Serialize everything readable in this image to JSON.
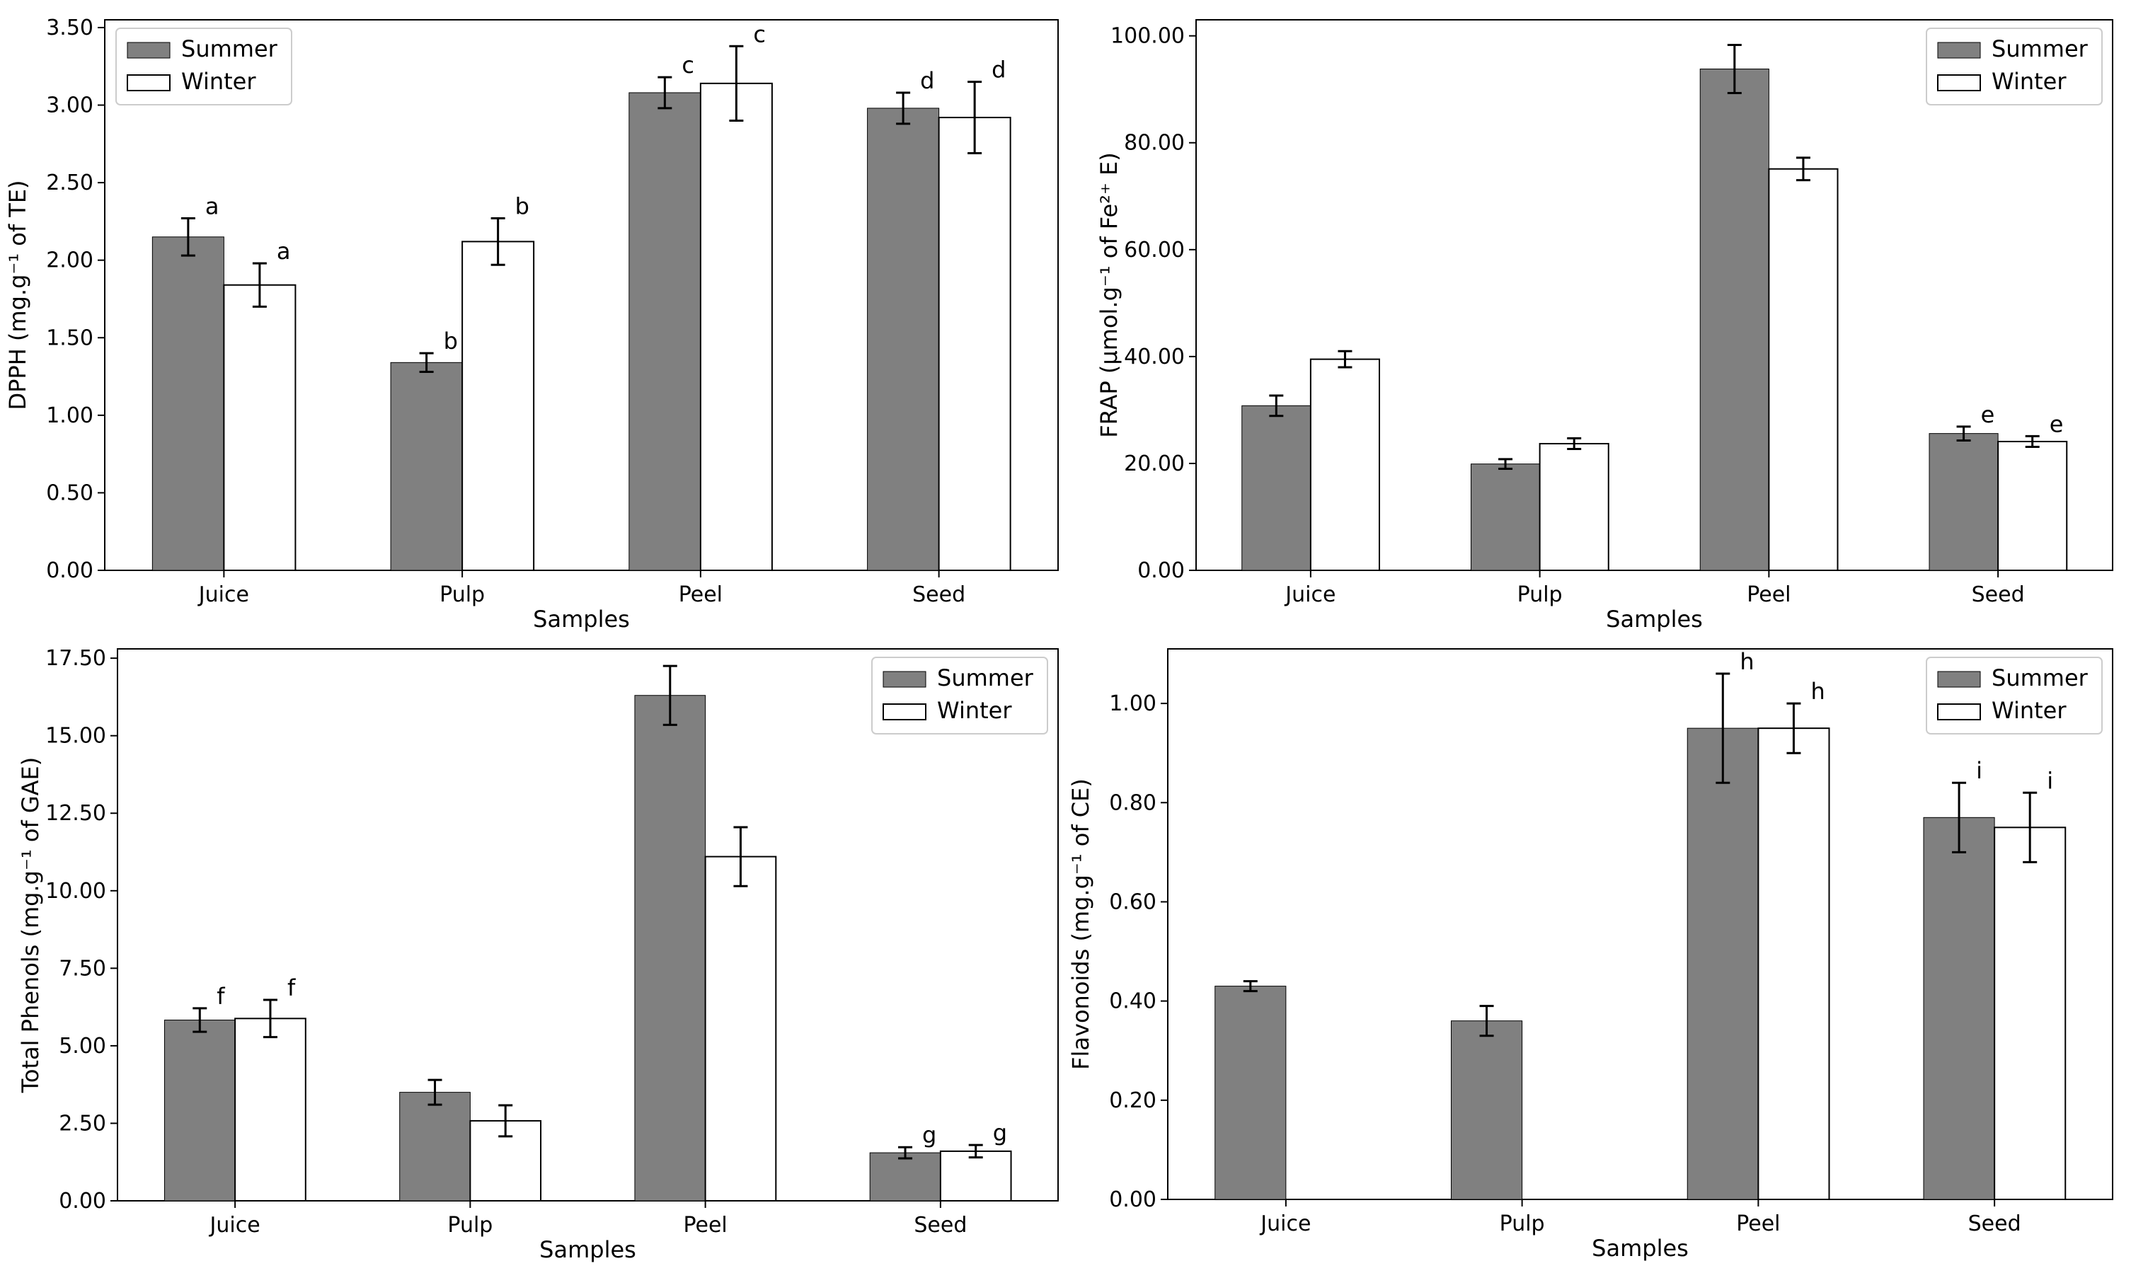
{
  "colors": {
    "summer": "#808080",
    "winter": "#ffffff",
    "edge": "#000000"
  },
  "chart_data": [
    {
      "id": "dpph",
      "type": "bar",
      "title": "",
      "xlabel": "Samples",
      "ylabel": "DPPH (mg.g⁻¹ of TE)",
      "ylim": [
        0,
        3.55
      ],
      "yticks": [
        0,
        0.5,
        1.0,
        1.5,
        2.0,
        2.5,
        3.0,
        3.5
      ],
      "ytick_labels": [
        "0.00",
        "0.50",
        "1.00",
        "1.50",
        "2.00",
        "2.50",
        "3.00",
        "3.50"
      ],
      "categories": [
        "Juice",
        "Pulp",
        "Peel",
        "Seed"
      ],
      "legend": {
        "placement": "top-left",
        "entries": [
          "Summer",
          "Winter"
        ]
      },
      "series": [
        {
          "name": "Summer",
          "values": [
            2.15,
            1.34,
            3.08,
            2.98
          ],
          "errors": [
            0.12,
            0.06,
            0.1,
            0.1
          ],
          "labels": [
            "a",
            "b",
            "c",
            "d"
          ]
        },
        {
          "name": "Winter",
          "values": [
            1.84,
            2.12,
            3.14,
            2.92
          ],
          "errors": [
            0.14,
            0.15,
            0.24,
            0.23
          ],
          "labels": [
            "a",
            "b",
            "c",
            "d"
          ]
        }
      ]
    },
    {
      "id": "frap",
      "type": "bar",
      "title": "",
      "xlabel": "Samples",
      "ylabel": "FRAP (µmol.g⁻¹ of Fe²⁺ E)",
      "ylim": [
        0,
        103
      ],
      "yticks": [
        0,
        20,
        40,
        60,
        80,
        100
      ],
      "ytick_labels": [
        "0.00",
        "20.00",
        "40.00",
        "60.00",
        "80.00",
        "100.00"
      ],
      "categories": [
        "Juice",
        "Pulp",
        "Peel",
        "Seed"
      ],
      "legend": {
        "placement": "top-right",
        "entries": [
          "Summer",
          "Winter"
        ]
      },
      "series": [
        {
          "name": "Summer",
          "values": [
            30.8,
            19.9,
            93.8,
            25.6
          ],
          "errors": [
            1.9,
            0.9,
            4.5,
            1.3
          ],
          "labels": [
            "",
            "",
            "",
            "e"
          ]
        },
        {
          "name": "Winter",
          "values": [
            39.5,
            23.7,
            75.1,
            24.1
          ],
          "errors": [
            1.5,
            1.0,
            2.1,
            1.0
          ],
          "labels": [
            "",
            "",
            "",
            "e"
          ]
        }
      ]
    },
    {
      "id": "phenols",
      "type": "bar",
      "title": "",
      "xlabel": "Samples",
      "ylabel": "Total Phenols (mg.g⁻¹ of GAE)",
      "ylim": [
        0,
        17.8
      ],
      "yticks": [
        0,
        2.5,
        5.0,
        7.5,
        10.0,
        12.5,
        15.0,
        17.5
      ],
      "ytick_labels": [
        "0.00",
        "2.50",
        "5.00",
        "7.50",
        "10.00",
        "12.50",
        "15.00",
        "17.50"
      ],
      "categories": [
        "Juice",
        "Pulp",
        "Peel",
        "Seed"
      ],
      "legend": {
        "placement": "top-right",
        "entries": [
          "Summer",
          "Winter"
        ]
      },
      "series": [
        {
          "name": "Summer",
          "values": [
            5.83,
            3.5,
            16.3,
            1.55
          ],
          "errors": [
            0.38,
            0.4,
            0.95,
            0.18
          ],
          "labels": [
            "f",
            "",
            "",
            "g"
          ]
        },
        {
          "name": "Winter",
          "values": [
            5.88,
            2.58,
            11.1,
            1.6
          ],
          "errors": [
            0.6,
            0.5,
            0.95,
            0.2
          ],
          "labels": [
            "f",
            "",
            "",
            "g"
          ]
        }
      ]
    },
    {
      "id": "flavonoids",
      "type": "bar",
      "title": "",
      "xlabel": "Samples",
      "ylabel": "Flavonoids (mg.g⁻¹ of CE)",
      "ylim": [
        0,
        1.11
      ],
      "yticks": [
        0,
        0.2,
        0.4,
        0.6,
        0.8,
        1.0
      ],
      "ytick_labels": [
        "0.00",
        "0.20",
        "0.40",
        "0.60",
        "0.80",
        "1.00"
      ],
      "categories": [
        "Juice",
        "Pulp",
        "Peel",
        "Seed"
      ],
      "legend": {
        "placement": "top-right",
        "entries": [
          "Summer",
          "Winter"
        ]
      },
      "series": [
        {
          "name": "Summer",
          "values": [
            0.43,
            0.36,
            0.95,
            0.77
          ],
          "errors": [
            0.01,
            0.03,
            0.11,
            0.07
          ],
          "labels": [
            "",
            "",
            "h",
            "i"
          ]
        },
        {
          "name": "Winter",
          "values": [
            0.0,
            0.0,
            0.95,
            0.75
          ],
          "errors": [
            0,
            0,
            0.05,
            0.07
          ],
          "labels": [
            "",
            "",
            "h",
            "i"
          ]
        }
      ]
    }
  ]
}
